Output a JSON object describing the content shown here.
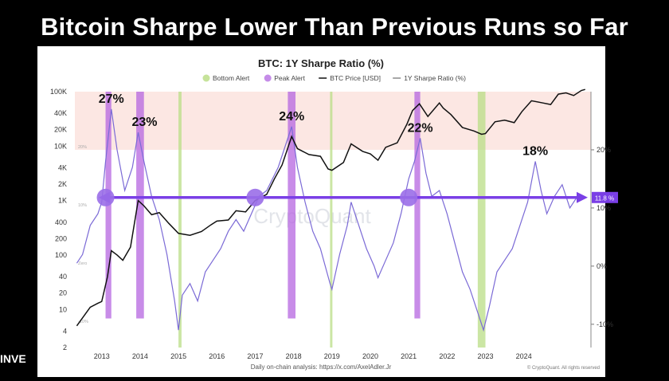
{
  "page": {
    "headline": "Bitcoin Sharpe Lower Than Previous Runs so Far",
    "brand_partial": "INVE"
  },
  "chart_data": {
    "type": "line",
    "title": "BTC: 1Y Sharpe Ratio (%)",
    "legend": [
      {
        "label": "Bottom Alert",
        "color": "#c6e39a",
        "marker": "dot"
      },
      {
        "label": "Peak Alert",
        "color": "#c58ce8",
        "marker": "dot"
      },
      {
        "label": "BTC Price [USD]",
        "color": "#111111",
        "marker": "line"
      },
      {
        "label": "1Y Sharpe Ratio (%)",
        "color": "#8a8a8a",
        "marker": "line"
      }
    ],
    "x_ticks": [
      "2013",
      "2014",
      "2015",
      "2016",
      "2017",
      "2018",
      "2019",
      "2020",
      "2021",
      "2022",
      "2023",
      "2024"
    ],
    "y_left_ticks": [
      "100K",
      "40K",
      "20K",
      "10K",
      "4K",
      "2K",
      "1K",
      "400",
      "200",
      "100",
      "40",
      "20",
      "10",
      "4",
      "2"
    ],
    "y_right_ticks": [
      "20%",
      "10%",
      "0%",
      "-10%"
    ],
    "inner_labels": [
      "20%",
      "10%",
      "Zero",
      "-10%"
    ],
    "y_left_scale": "log",
    "y_left_range": [
      2,
      100000
    ],
    "y_right_range": [
      -14,
      30
    ],
    "peak_annotations": [
      {
        "label": "27%",
        "x": 2013.25
      },
      {
        "label": "23%",
        "x": 2013.95
      },
      {
        "label": "24%",
        "x": 2017.95
      },
      {
        "label": "22%",
        "x": 2021.3
      },
      {
        "label": "18%",
        "x": 2024.3
      }
    ],
    "current_value_label": "11.8 %",
    "current_value": 11.8,
    "threshold_line_value": 11.8,
    "peak_alert_periods": [
      [
        2013.1,
        2013.25
      ],
      [
        2013.9,
        2014.1
      ],
      [
        2017.85,
        2018.05
      ],
      [
        2021.15,
        2021.3
      ]
    ],
    "bottom_alert_periods": [
      [
        2015.0,
        2015.08
      ],
      [
        2018.95,
        2019.0
      ],
      [
        2022.8,
        2023.0
      ]
    ],
    "watermark": "CryptoQuant",
    "footer": "Daily on-chain analysis: https://x.com/AxelAdler.Jr",
    "copyright": "© CryptoQuant. All rights reserved",
    "series": [
      {
        "name": "BTC Price [USD]",
        "axis": "left",
        "points": [
          [
            2012.35,
            5
          ],
          [
            2012.5,
            7
          ],
          [
            2012.7,
            11
          ],
          [
            2012.9,
            13
          ],
          [
            2013.0,
            14
          ],
          [
            2013.15,
            40
          ],
          [
            2013.25,
            120
          ],
          [
            2013.4,
            100
          ],
          [
            2013.55,
            80
          ],
          [
            2013.75,
            140
          ],
          [
            2013.95,
            1000
          ],
          [
            2014.1,
            800
          ],
          [
            2014.3,
            550
          ],
          [
            2014.5,
            600
          ],
          [
            2014.75,
            380
          ],
          [
            2015.0,
            250
          ],
          [
            2015.3,
            230
          ],
          [
            2015.6,
            270
          ],
          [
            2015.85,
            360
          ],
          [
            2016.0,
            420
          ],
          [
            2016.3,
            440
          ],
          [
            2016.5,
            650
          ],
          [
            2016.75,
            620
          ],
          [
            2017.0,
            1000
          ],
          [
            2017.3,
            1300
          ],
          [
            2017.5,
            2500
          ],
          [
            2017.7,
            4500
          ],
          [
            2017.95,
            15000
          ],
          [
            2018.1,
            9000
          ],
          [
            2018.4,
            7000
          ],
          [
            2018.7,
            6500
          ],
          [
            2018.9,
            3800
          ],
          [
            2019.0,
            3600
          ],
          [
            2019.3,
            5000
          ],
          [
            2019.5,
            11000
          ],
          [
            2019.8,
            8000
          ],
          [
            2020.0,
            7200
          ],
          [
            2020.2,
            5500
          ],
          [
            2020.4,
            9500
          ],
          [
            2020.7,
            11500
          ],
          [
            2020.95,
            25000
          ],
          [
            2021.1,
            45000
          ],
          [
            2021.28,
            60000
          ],
          [
            2021.5,
            35000
          ],
          [
            2021.8,
            62000
          ],
          [
            2021.9,
            50000
          ],
          [
            2022.1,
            38000
          ],
          [
            2022.4,
            22000
          ],
          [
            2022.7,
            19000
          ],
          [
            2022.9,
            16500
          ],
          [
            2023.0,
            17000
          ],
          [
            2023.25,
            28000
          ],
          [
            2023.5,
            30000
          ],
          [
            2023.75,
            27000
          ],
          [
            2023.95,
            43000
          ],
          [
            2024.2,
            68000
          ],
          [
            2024.5,
            62000
          ],
          [
            2024.7,
            58000
          ],
          [
            2024.9,
            90000
          ],
          [
            2025.1,
            95000
          ],
          [
            2025.3,
            85000
          ],
          [
            2025.5,
            105000
          ],
          [
            2025.6,
            110000
          ]
        ]
      },
      {
        "name": "1Y Sharpe Ratio (%)",
        "axis": "right",
        "points": [
          [
            2012.35,
            0.5
          ],
          [
            2012.5,
            2
          ],
          [
            2012.7,
            7
          ],
          [
            2012.9,
            9
          ],
          [
            2013.0,
            11
          ],
          [
            2013.1,
            18
          ],
          [
            2013.25,
            27
          ],
          [
            2013.4,
            20
          ],
          [
            2013.6,
            13
          ],
          [
            2013.8,
            17
          ],
          [
            2013.95,
            23
          ],
          [
            2014.1,
            18
          ],
          [
            2014.3,
            12
          ],
          [
            2014.5,
            8
          ],
          [
            2014.7,
            2
          ],
          [
            2014.9,
            -6
          ],
          [
            2015.0,
            -11
          ],
          [
            2015.1,
            -5
          ],
          [
            2015.3,
            -3
          ],
          [
            2015.5,
            -6
          ],
          [
            2015.7,
            -1
          ],
          [
            2015.9,
            1
          ],
          [
            2016.1,
            3
          ],
          [
            2016.3,
            6
          ],
          [
            2016.5,
            8
          ],
          [
            2016.7,
            6
          ],
          [
            2016.9,
            9
          ],
          [
            2017.1,
            12
          ],
          [
            2017.3,
            13
          ],
          [
            2017.6,
            17
          ],
          [
            2017.8,
            21
          ],
          [
            2017.95,
            24
          ],
          [
            2018.1,
            17
          ],
          [
            2018.3,
            11
          ],
          [
            2018.5,
            6
          ],
          [
            2018.7,
            3
          ],
          [
            2018.95,
            -3
          ],
          [
            2019.0,
            -4
          ],
          [
            2019.2,
            2
          ],
          [
            2019.4,
            7
          ],
          [
            2019.5,
            11
          ],
          [
            2019.7,
            7
          ],
          [
            2019.9,
            3
          ],
          [
            2020.1,
            0
          ],
          [
            2020.2,
            -2
          ],
          [
            2020.4,
            1
          ],
          [
            2020.6,
            4
          ],
          [
            2020.8,
            9
          ],
          [
            2021.0,
            15
          ],
          [
            2021.15,
            18
          ],
          [
            2021.3,
            22
          ],
          [
            2021.45,
            16
          ],
          [
            2021.6,
            12
          ],
          [
            2021.8,
            13
          ],
          [
            2022.0,
            9
          ],
          [
            2022.2,
            4
          ],
          [
            2022.4,
            -1
          ],
          [
            2022.6,
            -4
          ],
          [
            2022.8,
            -8
          ],
          [
            2022.95,
            -11
          ],
          [
            2023.1,
            -7
          ],
          [
            2023.3,
            -1
          ],
          [
            2023.5,
            1
          ],
          [
            2023.7,
            3
          ],
          [
            2023.9,
            7
          ],
          [
            2024.1,
            11
          ],
          [
            2024.3,
            18
          ],
          [
            2024.45,
            13
          ],
          [
            2024.6,
            9
          ],
          [
            2024.8,
            12
          ],
          [
            2025.0,
            14
          ],
          [
            2025.2,
            10
          ],
          [
            2025.4,
            12
          ],
          [
            2025.6,
            11.8
          ]
        ]
      }
    ]
  }
}
